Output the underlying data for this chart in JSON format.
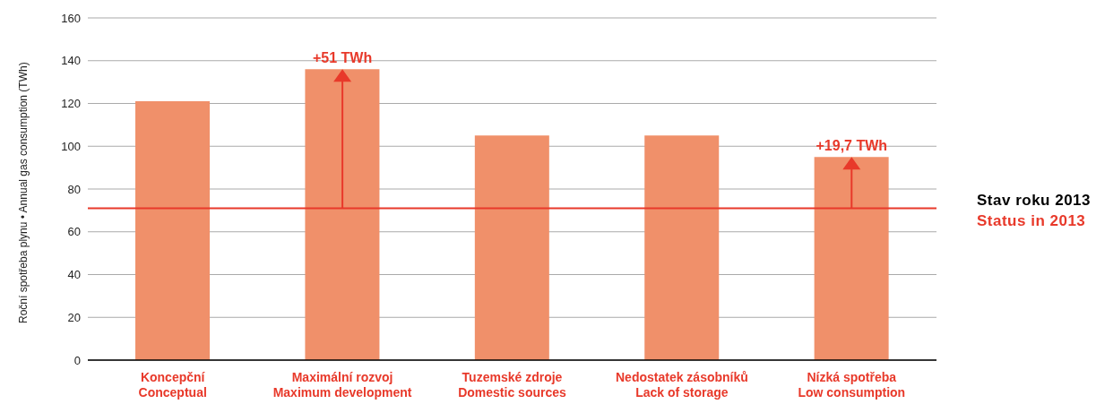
{
  "chart_data": {
    "type": "bar",
    "ylabel": "Roční spotřeba plynu • Annual gas consumption (TWh)",
    "categories": [
      "Koncepční\nConceptual",
      "Maximální rozvoj\nMaximum development",
      "Tuzemské zdroje\nDomestic sources",
      "Nedostatek zásobníků\nLack of storage",
      "Nízká spotřeba\nLow consumption"
    ],
    "values": [
      121,
      136,
      105,
      105,
      95
    ],
    "color": "#f0906a",
    "ylim": [
      0,
      160
    ],
    "yticks": [
      0,
      20,
      40,
      60,
      80,
      100,
      120,
      140,
      160
    ],
    "grid": "y",
    "ref_lines": [
      {
        "axis": "y",
        "value": 71,
        "label": "Stav roku 2013\nStatus in 2013",
        "color": "#e8392a"
      }
    ],
    "annotations": [
      {
        "text": "+51 TWh",
        "x": "Maximální rozvoj\nMaximum development",
        "y": 136
      },
      {
        "text": "+19,7 TWh",
        "x": "Nízká spotřeba\nLow consumption",
        "y": 95
      }
    ]
  }
}
